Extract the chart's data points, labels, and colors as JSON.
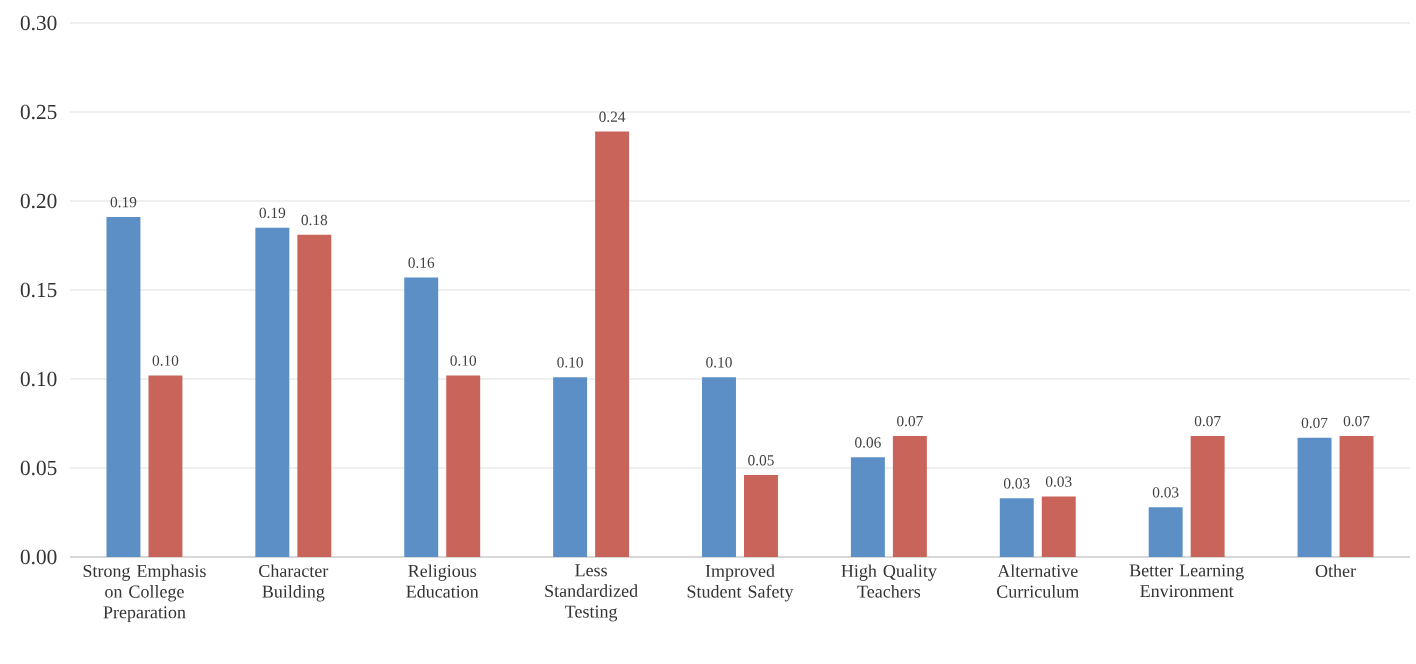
{
  "chart_data": {
    "type": "bar",
    "categories": [
      "Strong Emphasis on College Preparation",
      "Character Building",
      "Religious Education",
      "Less Standardized Testing",
      "Improved Student Safety",
      "High Quality Teachers",
      "Alternative Curriculum",
      "Better Learning Environment",
      "Other"
    ],
    "series": [
      {
        "color": "#5b8fc5",
        "values": [
          0.191,
          0.185,
          0.157,
          0.101,
          0.101,
          0.056,
          0.033,
          0.028,
          0.067
        ],
        "value_labels": [
          "0.19",
          "0.19",
          "0.16",
          "0.10",
          "0.10",
          "0.06",
          "0.03",
          "0.03",
          "0.07"
        ]
      },
      {
        "color": "#c9645a",
        "values": [
          0.102,
          0.181,
          0.102,
          0.239,
          0.046,
          0.068,
          0.034,
          0.068,
          0.068
        ],
        "value_labels": [
          "0.10",
          "0.18",
          "0.10",
          "0.24",
          "0.05",
          "0.07",
          "0.03",
          "0.07",
          "0.07"
        ]
      }
    ],
    "ylim": [
      0,
      0.3
    ],
    "yticks": [
      {
        "value": 0,
        "label": "0.00"
      },
      {
        "value": 0.05,
        "label": "0.05"
      },
      {
        "value": 0.1,
        "label": "0.10"
      },
      {
        "value": 0.15,
        "label": "0.15"
      },
      {
        "value": 0.2,
        "label": "0.20"
      },
      {
        "value": 0.25,
        "label": "0.25"
      },
      {
        "value": 0.3,
        "label": "0.30"
      }
    ],
    "grid": "y"
  }
}
